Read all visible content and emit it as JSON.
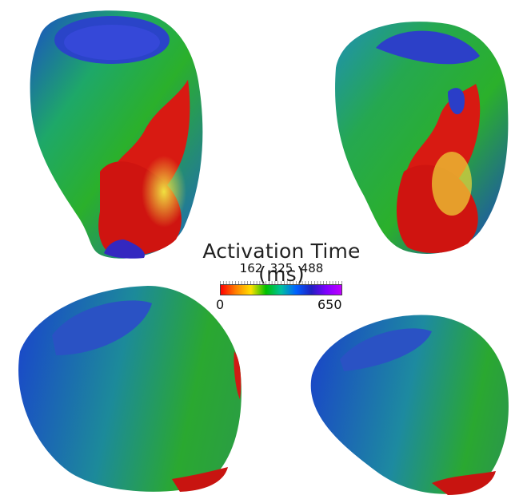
{
  "legend": {
    "title": "Activation Time (ms)",
    "min_label": "0",
    "max_label": "650",
    "tick_labels": [
      "162",
      "325",
      "488"
    ],
    "colormap": [
      "#ff0000",
      "#ff8000",
      "#ffe000",
      "#00c000",
      "#00c0a0",
      "#0060ff",
      "#2020c0",
      "#8000ff",
      "#c000ff"
    ]
  },
  "views": [
    {
      "name": "top-left-view"
    },
    {
      "name": "top-right-view"
    },
    {
      "name": "bottom-left-view"
    },
    {
      "name": "bottom-right-view"
    }
  ],
  "colors": {
    "early": "#d41010",
    "mid": "#22a830",
    "late": "#1840c0",
    "base": "#2a4cc8",
    "latest": "#7a30c0"
  }
}
